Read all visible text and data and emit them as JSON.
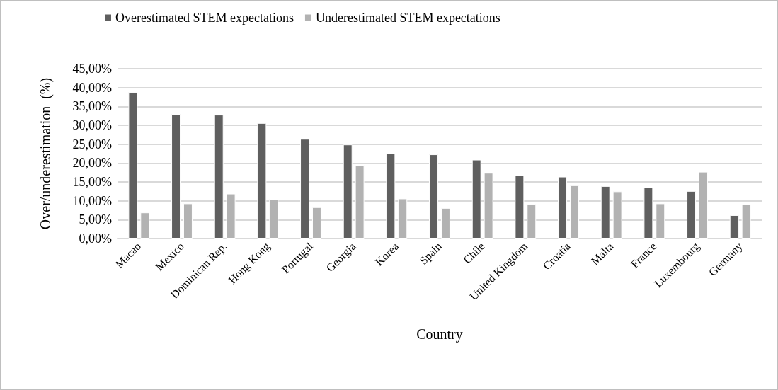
{
  "chart_data": {
    "type": "bar",
    "xlabel": "Country",
    "ylabel": "Over/underestimation  (%)",
    "categories": [
      "Macao",
      "Mexico",
      "Dominican Rep.",
      "Hong Kong",
      "Portugal",
      "Georgia",
      "Korea",
      "Spain",
      "Chile",
      "United Kingdom",
      "Croatia",
      "Malta",
      "France",
      "Luxembourg",
      "Germany"
    ],
    "series": [
      {
        "name": "Overestimated STEM expectations",
        "color": "#5f5f5f",
        "values": [
          38.8,
          33.0,
          32.8,
          30.6,
          26.4,
          24.9,
          22.6,
          22.3,
          20.9,
          16.8,
          16.4,
          13.9,
          13.6,
          12.6,
          6.2
        ]
      },
      {
        "name": "Underestimated STEM expectations",
        "color": "#b2b2b2",
        "values": [
          6.9,
          9.3,
          11.9,
          10.5,
          8.3,
          19.5,
          10.6,
          8.1,
          17.4,
          9.2,
          14.1,
          12.5,
          9.3,
          17.7,
          9.1
        ]
      }
    ],
    "ylim": [
      0,
      45
    ],
    "yticks": [
      {
        "value": 0,
        "label": "0,00%"
      },
      {
        "value": 5,
        "label": "5,00%"
      },
      {
        "value": 10,
        "label": "10,00%"
      },
      {
        "value": 15,
        "label": "15,00%"
      },
      {
        "value": 20,
        "label": "20,00%"
      },
      {
        "value": 25,
        "label": "25,00%"
      },
      {
        "value": 30,
        "label": "30,00%"
      },
      {
        "value": 35,
        "label": "35,00%"
      },
      {
        "value": 40,
        "label": "40,00%"
      },
      {
        "value": 45,
        "label": "45,00%"
      }
    ],
    "grid": "y",
    "legend": "top left"
  }
}
